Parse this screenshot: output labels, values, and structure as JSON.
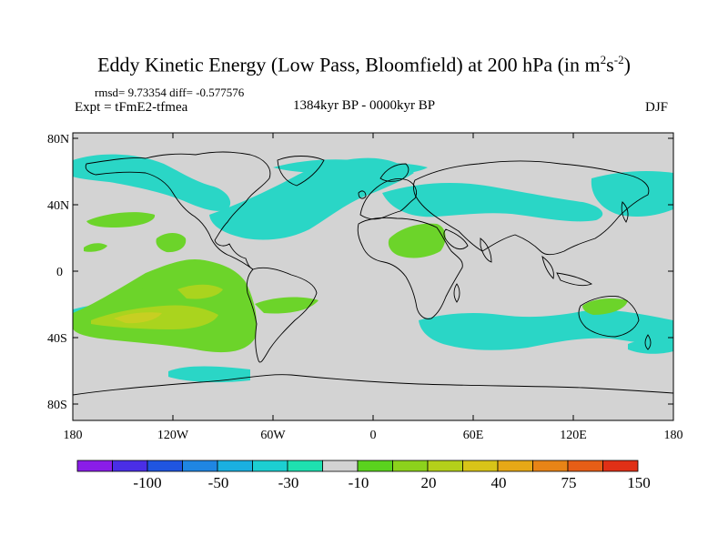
{
  "title": {
    "main": "Eddy Kinetic Energy (Low Pass, Bloomfield) at 200 hPa (in m",
    "sup1": "2",
    "mid": "s",
    "sup2": "-2",
    "end": ")"
  },
  "stats": "rmsd= 9.73354 diff= -0.577576",
  "experiment": "Expt = tFmE2-tfmea",
  "period": "1384kyr BP - 0000kyr BP",
  "season": "DJF",
  "lat_ticks": [
    "80N",
    "40N",
    "0",
    "40S",
    "80S"
  ],
  "lon_ticks": [
    "180",
    "120W",
    "60W",
    "0",
    "60E",
    "120E",
    "180"
  ],
  "colorbar": {
    "labels": [
      "-100",
      "-50",
      "-30",
      "-10",
      "20",
      "40",
      "75",
      "150"
    ],
    "colors": [
      "#8a1de8",
      "#4a2ee6",
      "#1f55e0",
      "#1f86e2",
      "#1ab0e0",
      "#1ccfd2",
      "#1ee0b0",
      "#d3d3d3",
      "#5ad31e",
      "#8cd21c",
      "#b4d01a",
      "#d8c418",
      "#e6a816",
      "#e88416",
      "#e65e16",
      "#e03016"
    ]
  },
  "colors": {
    "land_ocean_background": "#d3d3d3",
    "neg_weak": "#2ad6c6",
    "pos_weak": "#6cd42a",
    "pos_mid": "#aad41e",
    "pos_strong": "#c7cf22"
  }
}
